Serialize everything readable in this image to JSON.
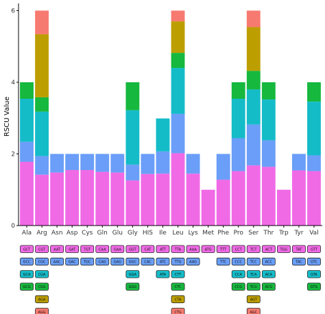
{
  "chart_data": {
    "type": "bar",
    "stacked": true,
    "title": "",
    "xlabel": "",
    "ylabel": "RSCU Value",
    "ylim": [
      0,
      6.2
    ],
    "yticks": [
      0,
      2,
      4,
      6
    ],
    "grid": false,
    "legend": "codon boxes below each amino acid",
    "layer_colors": [
      "#f06ae6",
      "#6a9ef8",
      "#14bcc8",
      "#16b83e",
      "#bd9e00",
      "#f77a70"
    ],
    "categories": [
      "Ala",
      "Arg",
      "Asn",
      "Asp",
      "Cys",
      "Gln",
      "Glu",
      "Gly",
      "HIS",
      "Ile",
      "Leu",
      "Lys",
      "Met",
      "Phe",
      "Pro",
      "Ser",
      "Thr",
      "Trp",
      "Tyr",
      "Val"
    ],
    "stacks": [
      {
        "aa": "Ala",
        "codons": [
          "GCT",
          "GCC",
          "GCA",
          "GCG"
        ],
        "values": [
          1.78,
          0.56,
          1.2,
          0.46
        ]
      },
      {
        "aa": "Arg",
        "codons": [
          "CGT",
          "CGC",
          "CGA",
          "CGG",
          "AGA",
          "AGG"
        ],
        "values": [
          1.42,
          0.52,
          1.24,
          0.4,
          1.76,
          0.66
        ]
      },
      {
        "aa": "Asn",
        "codons": [
          "AAT",
          "AAC"
        ],
        "values": [
          1.48,
          0.52
        ]
      },
      {
        "aa": "Asp",
        "codons": [
          "GAT",
          "GAC"
        ],
        "values": [
          1.55,
          0.45
        ]
      },
      {
        "aa": "Cys",
        "codons": [
          "TGT",
          "TGC"
        ],
        "values": [
          1.55,
          0.45
        ]
      },
      {
        "aa": "Gln",
        "codons": [
          "CAA",
          "CAG"
        ],
        "values": [
          1.5,
          0.5
        ]
      },
      {
        "aa": "Glu",
        "codons": [
          "GAA",
          "GAG"
        ],
        "values": [
          1.48,
          0.52
        ]
      },
      {
        "aa": "Gly",
        "codons": [
          "GGT",
          "GGC",
          "GGA",
          "GGG"
        ],
        "values": [
          1.26,
          0.44,
          1.52,
          0.78
        ]
      },
      {
        "aa": "HIS",
        "codons": [
          "CAT",
          "CAC"
        ],
        "values": [
          1.44,
          0.56
        ]
      },
      {
        "aa": "Ile",
        "codons": [
          "ATT",
          "ATC",
          "ATA"
        ],
        "values": [
          1.45,
          0.62,
          0.92
        ]
      },
      {
        "aa": "Leu",
        "codons": [
          "TTA",
          "TTG",
          "CTT",
          "CTC",
          "CTA",
          "CTG"
        ],
        "values": [
          2.02,
          1.1,
          1.28,
          0.42,
          0.88,
          0.3
        ]
      },
      {
        "aa": "Lys",
        "codons": [
          "AAA",
          "AAG"
        ],
        "values": [
          1.45,
          0.55
        ]
      },
      {
        "aa": "Met",
        "codons": [
          "ATG"
        ],
        "values": [
          1.0
        ]
      },
      {
        "aa": "Phe",
        "codons": [
          "TTT",
          "TTC"
        ],
        "values": [
          1.28,
          0.72
        ]
      },
      {
        "aa": "Pro",
        "codons": [
          "CCT",
          "CCC",
          "CCA",
          "CCG"
        ],
        "values": [
          1.52,
          0.92,
          1.1,
          0.46
        ]
      },
      {
        "aa": "Ser",
        "codons": [
          "TCT",
          "TCC",
          "TCA",
          "TCG",
          "AGT",
          "AGC"
        ],
        "values": [
          1.68,
          1.14,
          0.98,
          0.52,
          1.22,
          0.46
        ]
      },
      {
        "aa": "Thr",
        "codons": [
          "ACT",
          "ACC",
          "ACA",
          "ACG"
        ],
        "values": [
          1.64,
          0.74,
          1.14,
          0.48
        ]
      },
      {
        "aa": "Trp",
        "codons": [
          "TGG"
        ],
        "values": [
          1.0
        ]
      },
      {
        "aa": "Tyr",
        "codons": [
          "TAT",
          "TAC"
        ],
        "values": [
          1.54,
          0.46
        ]
      },
      {
        "aa": "Val",
        "codons": [
          "GTT",
          "GTC",
          "GTA",
          "GTG"
        ],
        "values": [
          1.52,
          0.44,
          1.5,
          0.54
        ]
      }
    ]
  }
}
